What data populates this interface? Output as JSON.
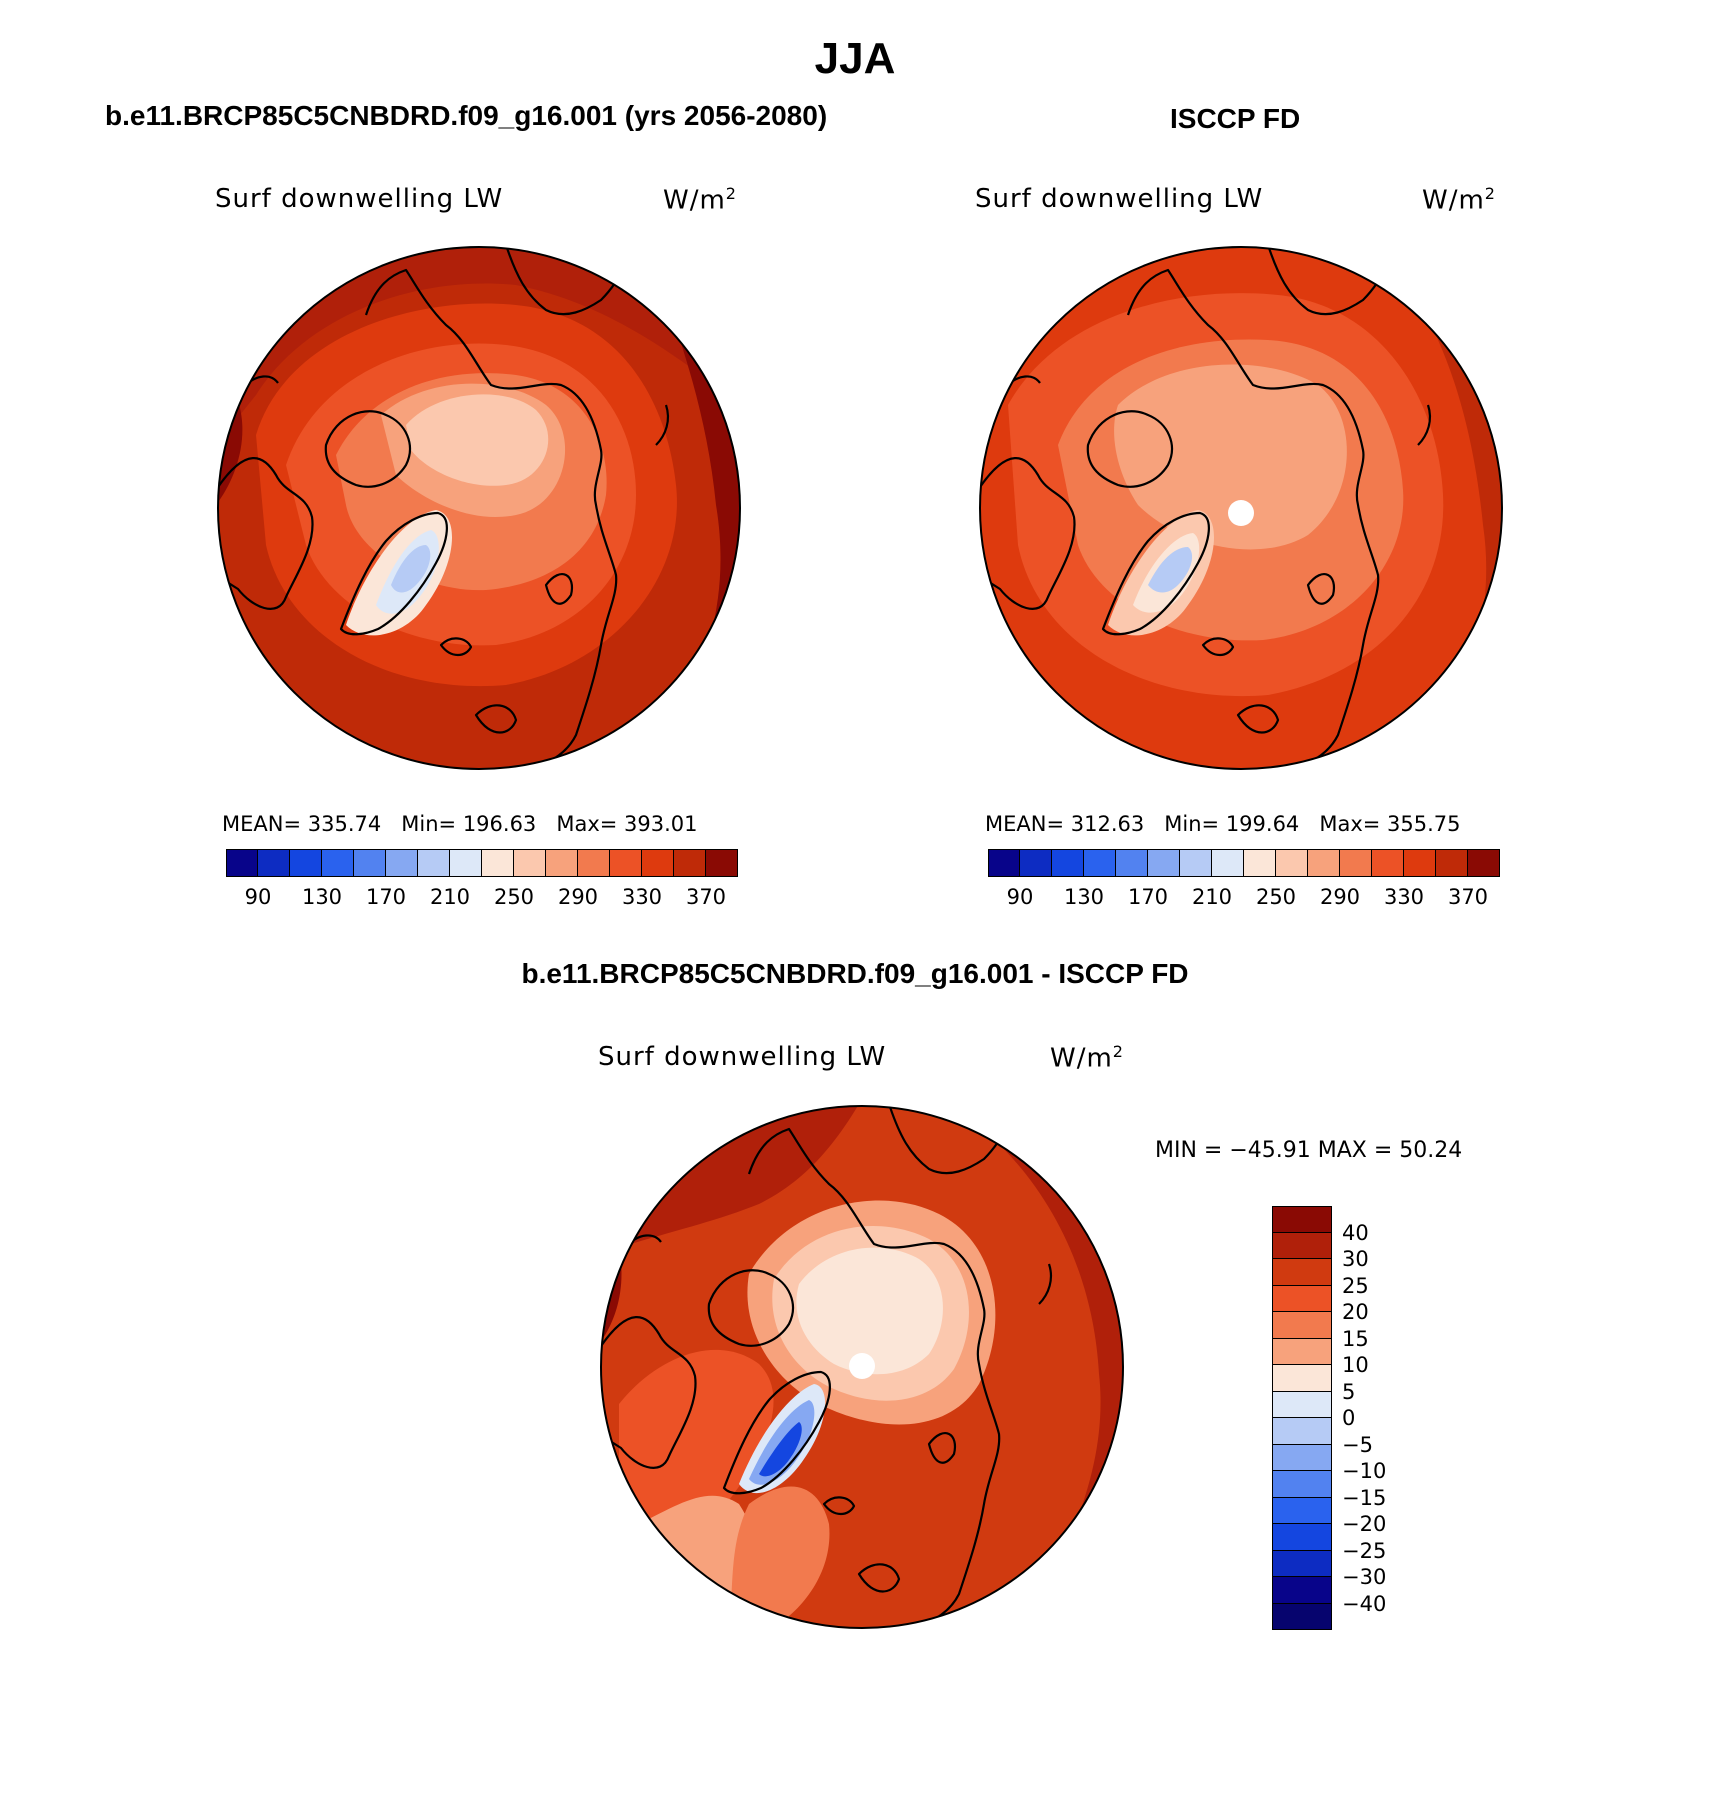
{
  "figure": {
    "title": "JJA",
    "panels": [
      {
        "id": "model",
        "header": "b.e11.BRCP85C5CNBDRD.f09_g16.001 (yrs 2056-2080)",
        "variable": "Surf downwelling LW",
        "units": "W/m",
        "units_sup": "2",
        "stats": {
          "mean_label": "MEAN=",
          "mean": "335.74",
          "min_label": "Min=",
          "min": "196.63",
          "max_label": "Max=",
          "max": "393.01"
        }
      },
      {
        "id": "obs",
        "header": "ISCCP FD",
        "variable": "Surf downwelling LW",
        "units": "W/m",
        "units_sup": "2",
        "stats": {
          "mean_label": "MEAN=",
          "mean": "312.63",
          "min_label": "Min=",
          "min": "199.64",
          "max_label": "Max=",
          "max": "355.75"
        }
      },
      {
        "id": "diff",
        "header": "b.e11.BRCP85C5CNBDRD.f09_g16.001 - ISCCP FD",
        "variable": "Surf downwelling LW",
        "units": "W/m",
        "units_sup": "2",
        "minmax": "MIN = −45.91  MAX =   50.24"
      }
    ]
  },
  "chart_data": {
    "type": "heatmap",
    "projection": "north polar stereographic",
    "colorbar_abs": {
      "ticks": [
        "90",
        "130",
        "170",
        "210",
        "250",
        "290",
        "330",
        "370"
      ],
      "colors": [
        "#08048a",
        "#0d2cc2",
        "#1446e0",
        "#2a62ee",
        "#5282f0",
        "#86a8f2",
        "#b6cbf5",
        "#dde8f8",
        "#fbe6d8",
        "#fbc8ae",
        "#f7a27c",
        "#f27a4e",
        "#ec5226",
        "#de3a0e",
        "#bf2a08",
        "#8a0a04"
      ]
    },
    "colorbar_diff": {
      "ticks": [
        "40",
        "30",
        "25",
        "20",
        "15",
        "10",
        "5",
        "0",
        "−5",
        "−10",
        "−15",
        "−20",
        "−25",
        "−30",
        "−40"
      ],
      "colors": [
        "#8a0a04",
        "#b0200a",
        "#d03a10",
        "#ec5226",
        "#f27a4e",
        "#f7a27c",
        "#fbe6d8",
        "#dde8f8",
        "#b6cbf5",
        "#86a8f2",
        "#5282f0",
        "#2a62ee",
        "#1446e0",
        "#0d2cc2",
        "#08048a",
        "#06046e"
      ]
    }
  }
}
